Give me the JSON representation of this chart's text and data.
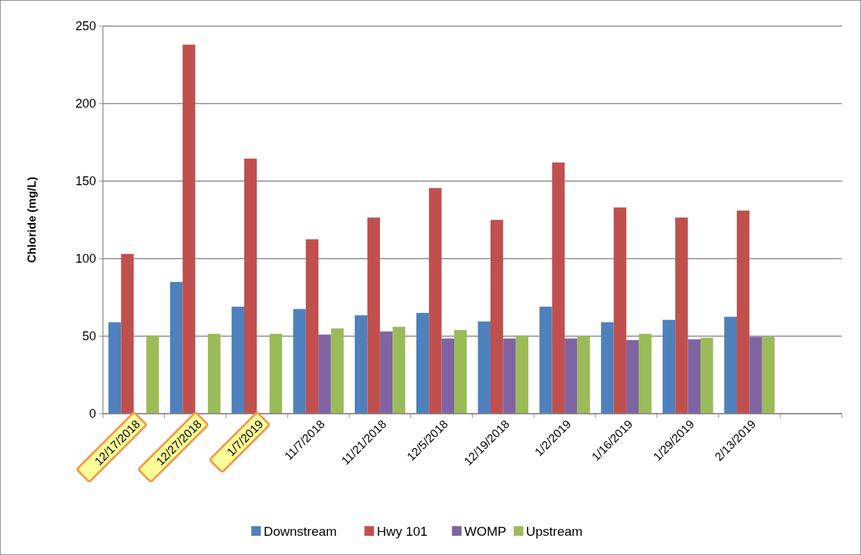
{
  "chart_data": {
    "type": "bar",
    "ylabel": "Chloride (mg/L)",
    "categories": [
      "12/17/2018",
      "12/27/2018",
      "1/7/2019",
      "11/7/2018",
      "11/21/2018",
      "12/5/2018",
      "12/19/2018",
      "1/2/2019",
      "1/16/2019",
      "1/29/2019",
      "2/13/2019",
      null
    ],
    "series": [
      {
        "name": "Downstream",
        "color": "#4f81bd",
        "values": [
          59,
          85,
          69,
          67.5,
          63.5,
          65,
          59.5,
          69,
          59,
          60.5,
          62.5,
          null
        ]
      },
      {
        "name": "Hwy 101",
        "color": "#c0504d",
        "values": [
          103,
          238,
          164.5,
          112.5,
          126.5,
          145.5,
          125,
          162,
          133,
          126.5,
          131,
          null
        ]
      },
      {
        "name": "WOMP",
        "color": "#8064a2",
        "values": [
          null,
          null,
          null,
          51,
          53,
          48.5,
          48.5,
          48.5,
          47.5,
          48,
          49.5,
          null
        ]
      },
      {
        "name": "Upstream",
        "color": "#9bbb59",
        "values": [
          50.5,
          51.5,
          51.5,
          55,
          56,
          54,
          50.5,
          50,
          51.5,
          49,
          49.5,
          null
        ]
      }
    ],
    "ylim": [
      0,
      250
    ],
    "yticks": [
      0,
      50,
      100,
      150,
      200,
      250
    ],
    "grid": "y",
    "legend": "bottom"
  }
}
